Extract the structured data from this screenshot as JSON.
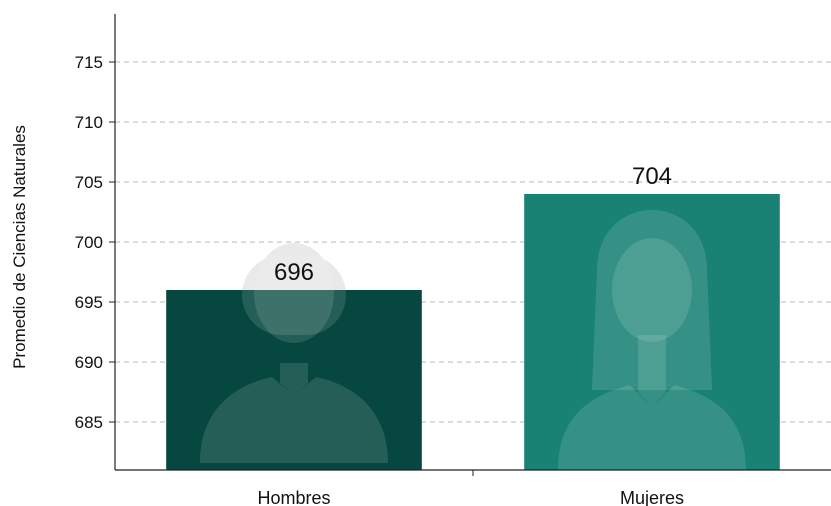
{
  "chart_data": {
    "type": "bar",
    "categories": [
      "Hombres",
      "Mujeres"
    ],
    "values": [
      696,
      704
    ],
    "value_labels": [
      "696",
      "704"
    ],
    "title": "",
    "xlabel": "",
    "ylabel": "Promedio de Ciencias Naturales",
    "ylim": [
      681,
      719
    ],
    "yticks": [
      685,
      690,
      695,
      700,
      705,
      710,
      715
    ],
    "grid": true,
    "bar_colors": [
      "#06483f",
      "#1a8275"
    ],
    "bar_icons": [
      "male-person-icon",
      "female-person-icon"
    ]
  }
}
